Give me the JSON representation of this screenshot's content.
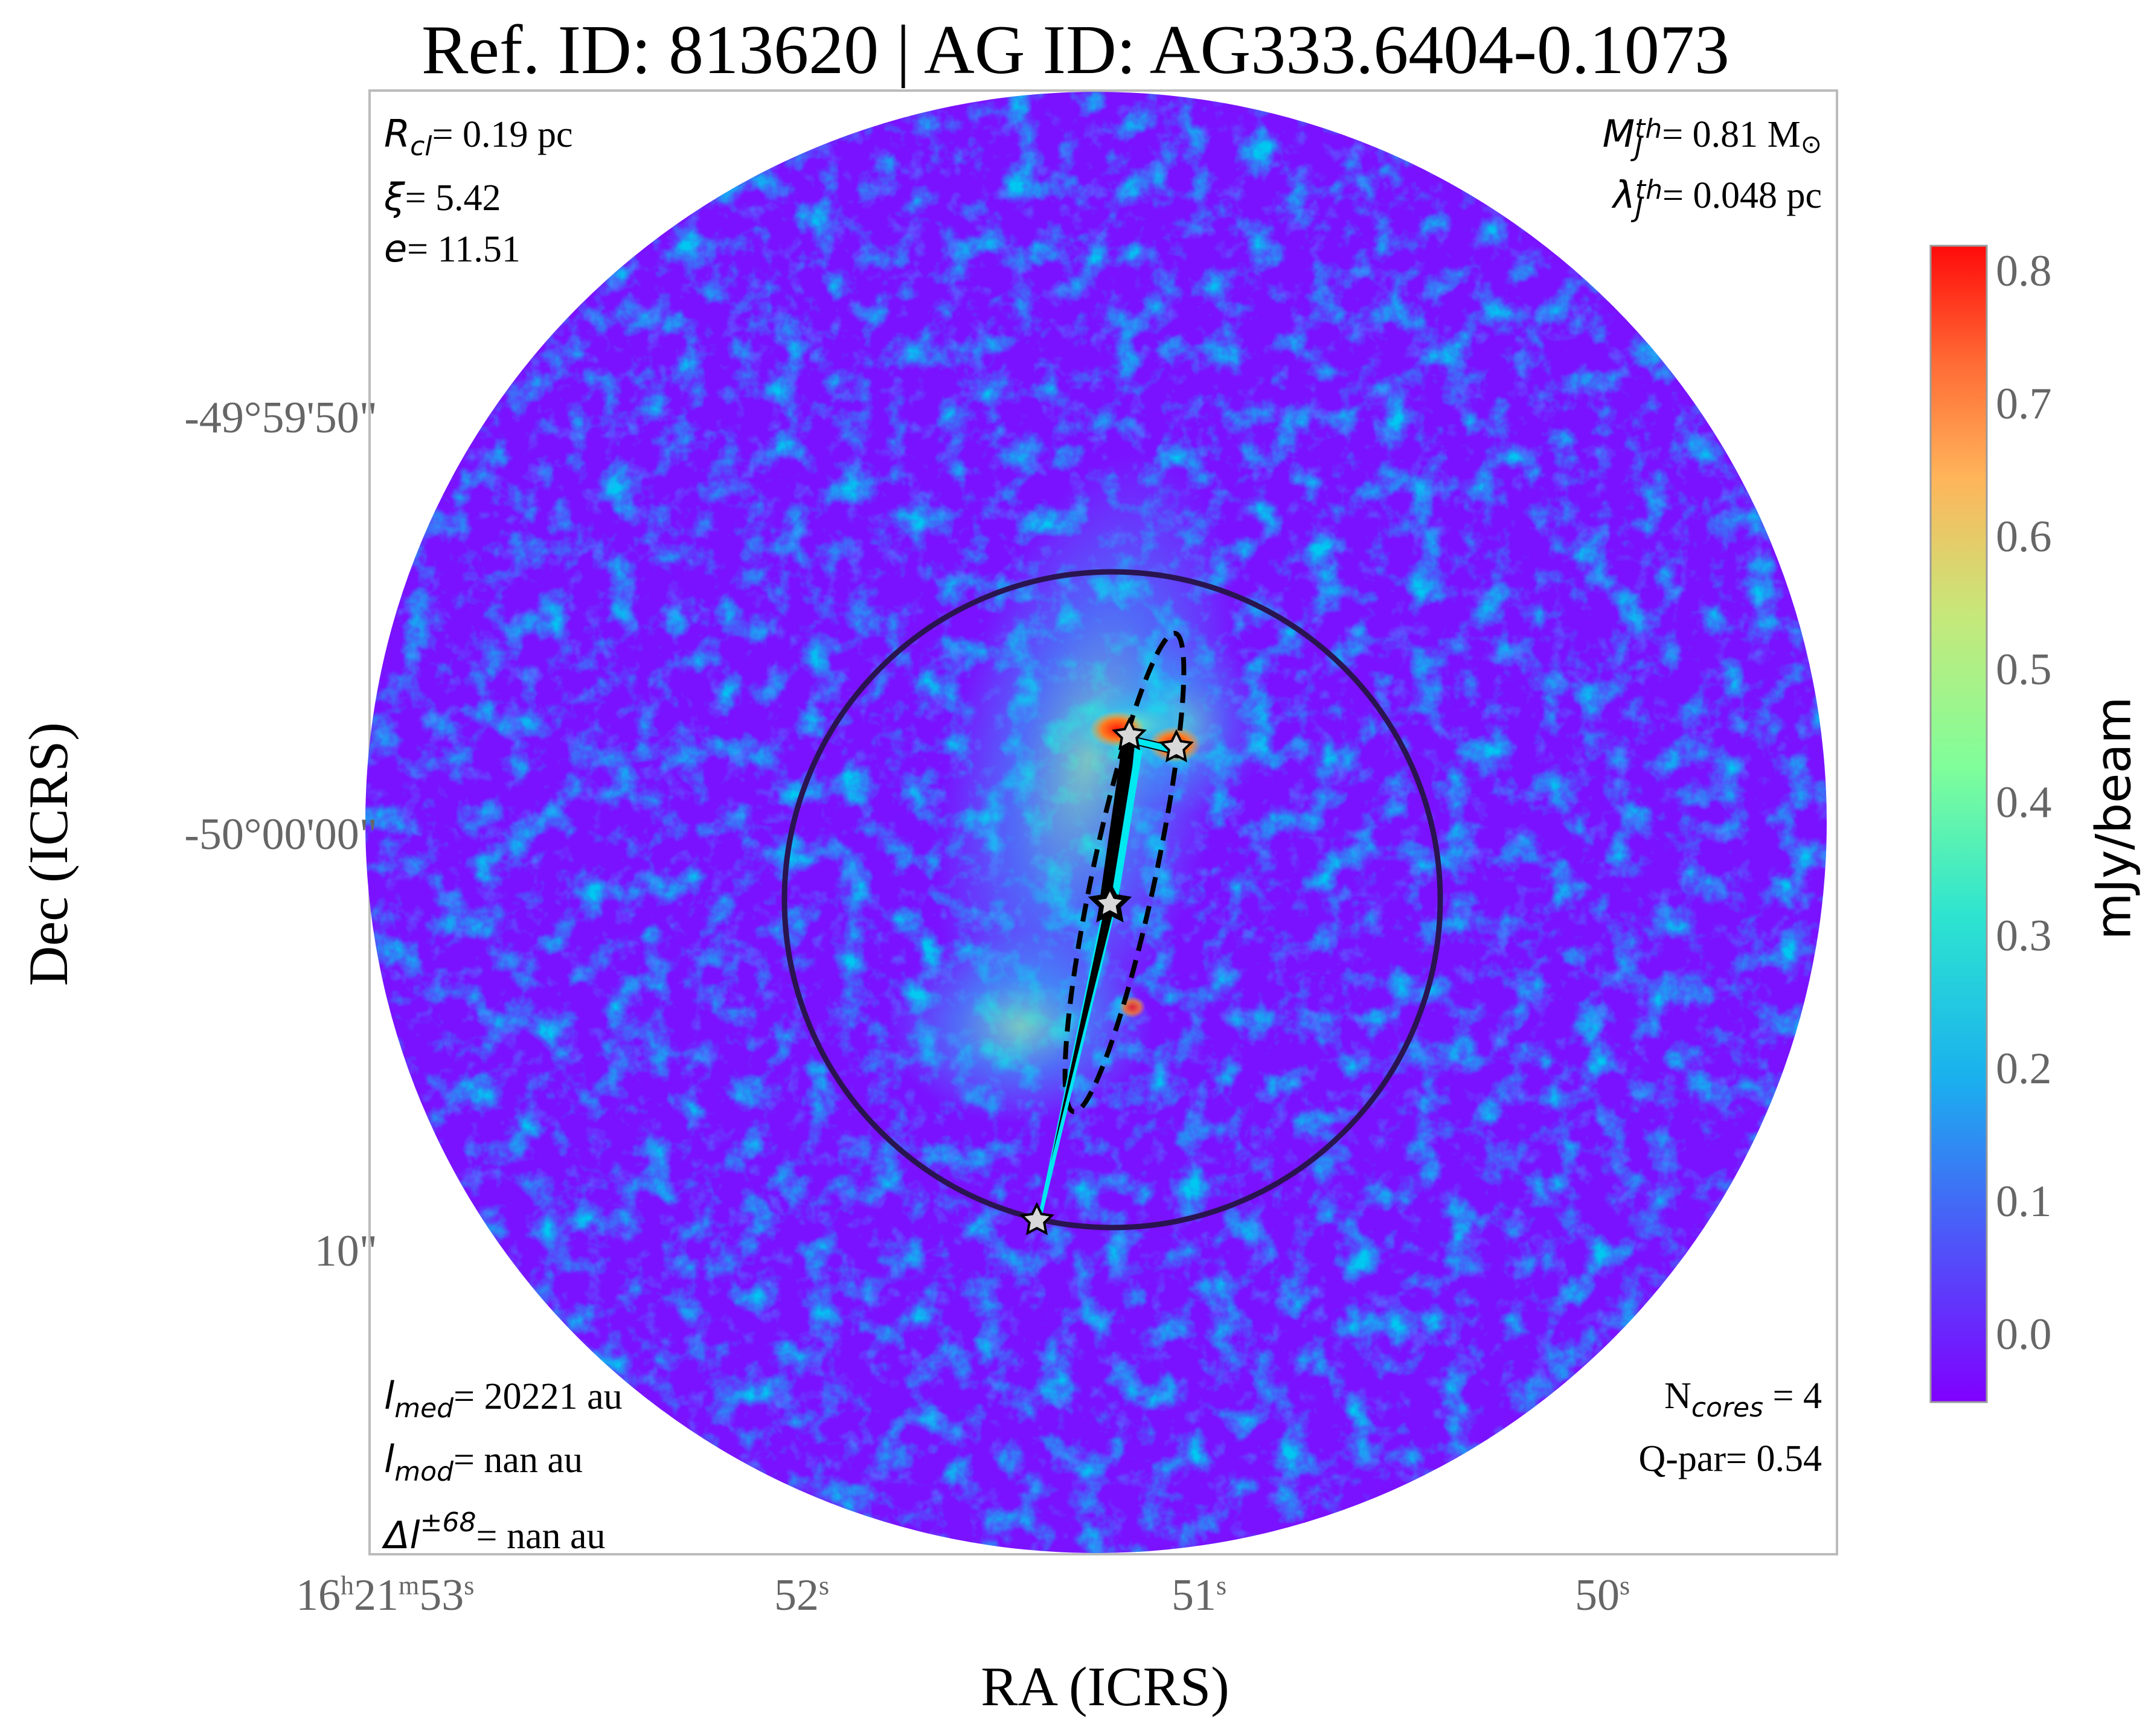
{
  "title": "Ref. ID: 813620 | AG ID: AG333.6404-0.1073",
  "axes": {
    "xlabel": "RA (ICRS)",
    "ylabel": "Dec (ICRS)",
    "xticks": [
      {
        "h": "16",
        "m": "21",
        "s": "53",
        "label_h": "h",
        "label_m": "m",
        "label_s": "s"
      },
      {
        "s": "52",
        "label_s": "s"
      },
      {
        "s": "51",
        "label_s": "s"
      },
      {
        "s": "50",
        "label_s": "s"
      }
    ],
    "yticks": [
      "-49°59'50\"",
      "-50°00'00\"",
      "10\""
    ]
  },
  "annotations": {
    "top_left": [
      {
        "sym": "R",
        "sub": "cl",
        "text": "= 0.19 pc"
      },
      {
        "sym": "ξ",
        "text": "= 5.42"
      },
      {
        "sym": "e",
        "text": "= 11.51"
      }
    ],
    "top_right": [
      {
        "sym": "M",
        "sub": "J",
        "sup": "th",
        "text": "= 0.81 M",
        "suffix": "⊙"
      },
      {
        "sym": "λ",
        "sub": "J",
        "sup": "th",
        "text": "= 0.048 pc"
      }
    ],
    "bottom_left": [
      {
        "sym": "l",
        "sub": "med",
        "text": "= 20221 au"
      },
      {
        "sym": "l",
        "sub": "mod",
        "text": "= nan au"
      },
      {
        "sym": "Δl",
        "sup": "±68",
        "text": "= nan au"
      }
    ],
    "bottom_right": [
      {
        "pre": "N",
        "sub": "cores",
        "text": " = 4"
      },
      {
        "pre": "Q-par",
        "text": "= 0.54"
      }
    ]
  },
  "colorbar": {
    "label": "mJy/beam",
    "ticks": [
      "0.8",
      "0.7",
      "0.6",
      "0.5",
      "0.4",
      "0.3",
      "0.2",
      "0.1",
      "0.0"
    ],
    "colormap": "rainbow",
    "range": [
      -0.05,
      0.82
    ]
  },
  "colors": {
    "field_base": "#7a12ff",
    "cluster_circle": "#2a1450",
    "mst_edge": "#000000",
    "mst_edge_light": "#00e8f0",
    "star_fill": "#d8d8d8",
    "peak": "#ff2a10"
  }
}
